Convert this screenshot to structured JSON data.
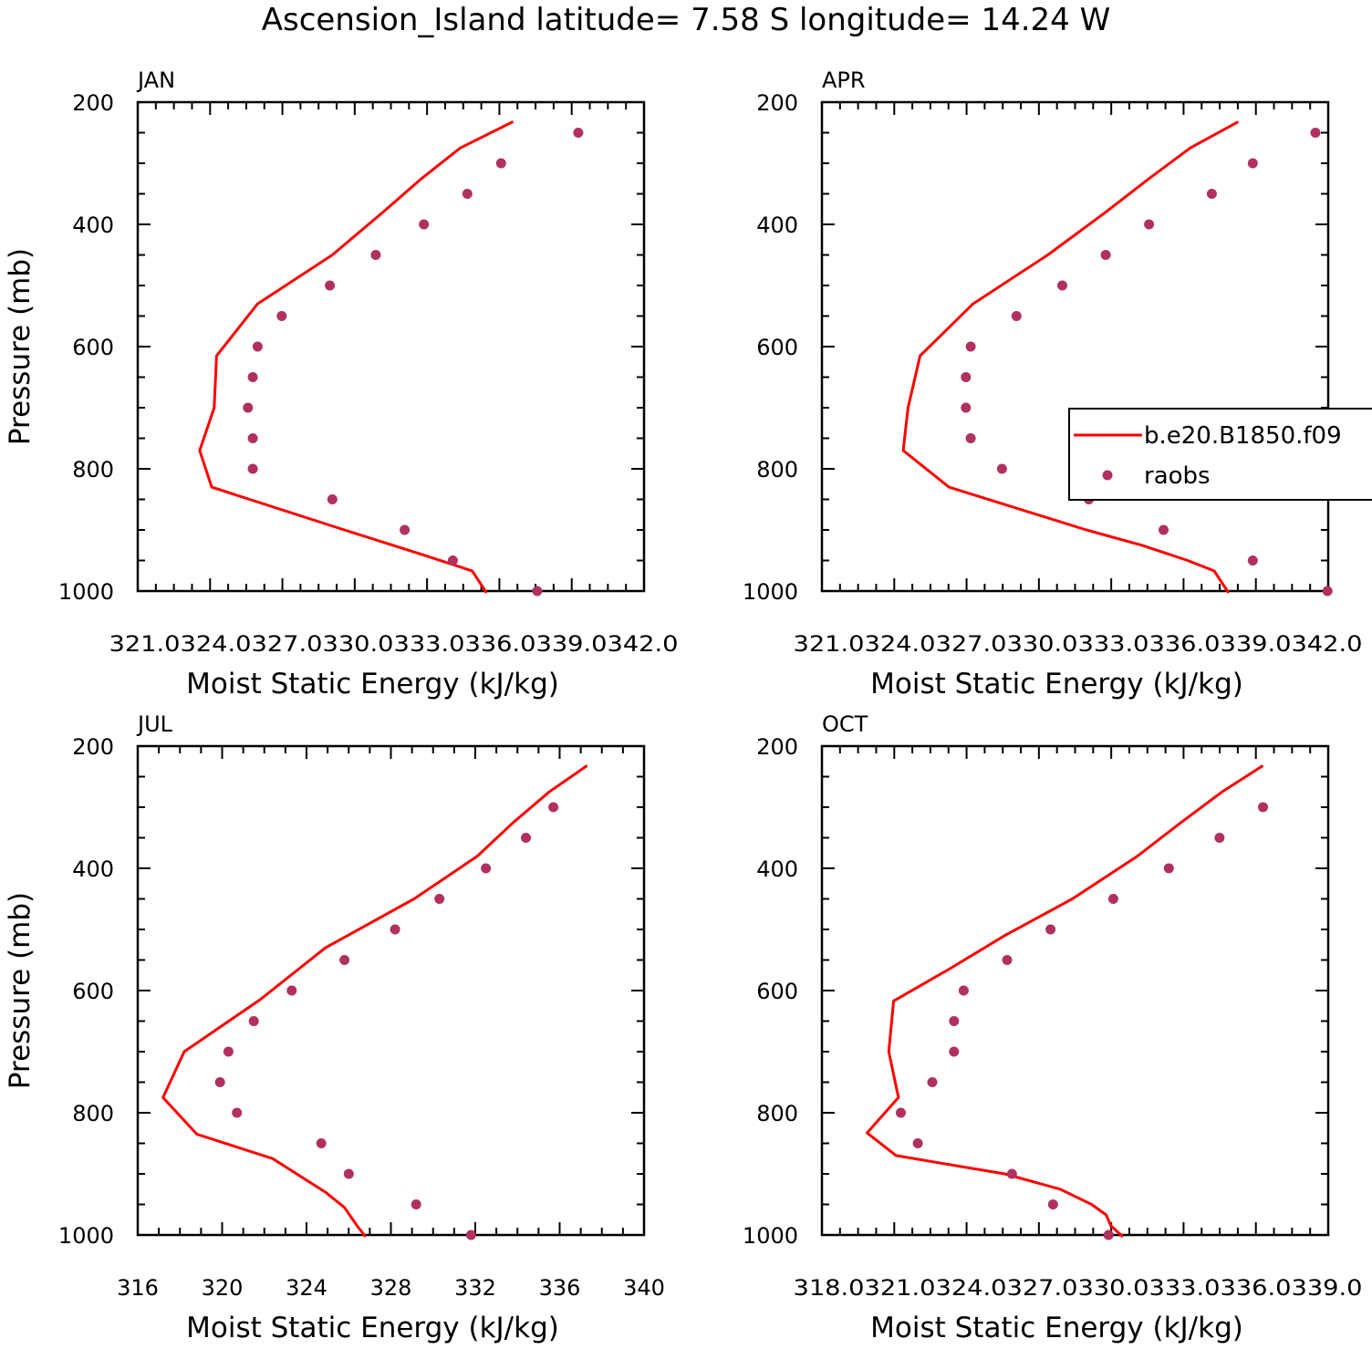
{
  "title": "Ascension_Island  latitude= 7.58 S longitude= 14.24 W",
  "legend": {
    "entries": [
      {
        "label": "b.e20.B1850.f09",
        "kind": "line",
        "color": "#ff0000"
      },
      {
        "label": "raobs",
        "kind": "marker",
        "color": "#b03060"
      }
    ]
  },
  "chart_data": [
    {
      "type": "line",
      "panel_title": "JAN",
      "xlabel": "Moist Static Energy (kJ/kg)",
      "ylabel": "Pressure (mb)",
      "xlim": [
        321.03,
        342.03
      ],
      "ylim": [
        1000,
        200
      ],
      "x_tick_labels": [
        "321.03",
        "24.03",
        "27.03",
        "30.03",
        "33.03",
        "36.03",
        "39.03",
        "42.0"
      ],
      "y_tick_labels": [
        "200",
        "400",
        "600",
        "800",
        "1000"
      ],
      "series": [
        {
          "name": "b.e20.B1850.f09",
          "points": [
            [
              336.6,
              232
            ],
            [
              334.4,
              275
            ],
            [
              332.8,
              325
            ],
            [
              331.2,
              380
            ],
            [
              329.1,
              450
            ],
            [
              326.0,
              530
            ],
            [
              324.3,
              615
            ],
            [
              324.2,
              700
            ],
            [
              323.6,
              770
            ],
            [
              324.1,
              830
            ],
            [
              329.6,
              900
            ],
            [
              332.8,
              940
            ],
            [
              334.9,
              967
            ],
            [
              335.5,
              1003
            ]
          ]
        },
        {
          "name": "raobs",
          "points": [
            [
              339.3,
              250
            ],
            [
              336.1,
              300
            ],
            [
              334.7,
              350
            ],
            [
              332.9,
              400
            ],
            [
              330.9,
              450
            ],
            [
              329.0,
              500
            ],
            [
              327.0,
              550
            ],
            [
              326.0,
              600
            ],
            [
              325.8,
              650
            ],
            [
              325.6,
              700
            ],
            [
              325.8,
              750
            ],
            [
              325.8,
              800
            ],
            [
              329.1,
              850
            ],
            [
              332.1,
              900
            ],
            [
              334.1,
              950
            ],
            [
              337.6,
              1000
            ]
          ]
        }
      ]
    },
    {
      "type": "line",
      "panel_title": "APR",
      "xlabel": "Moist Static Energy (kJ/kg)",
      "ylabel": "",
      "xlim": [
        321.03,
        342.03
      ],
      "ylim": [
        1000,
        200
      ],
      "x_tick_labels": [
        "321.03",
        "24.03",
        "27.03",
        "30.03",
        "33.03",
        "36.03",
        "39.03",
        "42.0"
      ],
      "y_tick_labels": [
        "200",
        "400",
        "600",
        "800",
        "1000"
      ],
      "series": [
        {
          "name": "b.e20.B1850.f09",
          "points": [
            [
              338.3,
              232
            ],
            [
              336.3,
              275
            ],
            [
              334.6,
              325
            ],
            [
              332.8,
              380
            ],
            [
              330.4,
              450
            ],
            [
              327.3,
              530
            ],
            [
              325.1,
              615
            ],
            [
              324.6,
              700
            ],
            [
              324.4,
              770
            ],
            [
              326.3,
              830
            ],
            [
              332.0,
              900
            ],
            [
              334.3,
              925
            ],
            [
              336.2,
              950
            ],
            [
              337.3,
              967
            ],
            [
              337.6,
              985
            ],
            [
              337.9,
              1003
            ]
          ]
        },
        {
          "name": "raobs",
          "points": [
            [
              341.5,
              250
            ],
            [
              338.9,
              300
            ],
            [
              337.2,
              350
            ],
            [
              334.6,
              400
            ],
            [
              332.8,
              450
            ],
            [
              331.0,
              500
            ],
            [
              329.1,
              550
            ],
            [
              327.2,
              600
            ],
            [
              327.0,
              650
            ],
            [
              327.0,
              700
            ],
            [
              327.2,
              750
            ],
            [
              328.5,
              800
            ],
            [
              332.1,
              850
            ],
            [
              335.2,
              900
            ],
            [
              338.9,
              950
            ],
            [
              342.0,
              1000
            ]
          ]
        }
      ]
    },
    {
      "type": "line",
      "panel_title": "JUL",
      "xlabel": "Moist Static Energy (kJ/kg)",
      "ylabel": "Pressure (mb)",
      "xlim": [
        316,
        340
      ],
      "ylim": [
        1000,
        200
      ],
      "x_tick_labels": [
        "316",
        "320",
        "324",
        "328",
        "332",
        "336",
        "340"
      ],
      "y_tick_labels": [
        "200",
        "400",
        "600",
        "800",
        "1000"
      ],
      "series": [
        {
          "name": "b.e20.B1850.f09",
          "points": [
            [
              337.3,
              232
            ],
            [
              335.5,
              275
            ],
            [
              333.8,
              325
            ],
            [
              332.1,
              380
            ],
            [
              329.1,
              450
            ],
            [
              324.9,
              530
            ],
            [
              321.8,
              615
            ],
            [
              318.2,
              700
            ],
            [
              317.2,
              775
            ],
            [
              318.8,
              835
            ],
            [
              322.4,
              875
            ],
            [
              324.9,
              930
            ],
            [
              325.8,
              955
            ],
            [
              326.4,
              985
            ],
            [
              326.8,
              1003
            ]
          ]
        },
        {
          "name": "raobs",
          "points": [
            [
              335.7,
              300
            ],
            [
              334.4,
              350
            ],
            [
              332.5,
              400
            ],
            [
              330.3,
              450
            ],
            [
              328.2,
              500
            ],
            [
              325.8,
              550
            ],
            [
              323.3,
              600
            ],
            [
              321.5,
              650
            ],
            [
              320.3,
              700
            ],
            [
              319.9,
              750
            ],
            [
              320.7,
              800
            ],
            [
              324.7,
              850
            ],
            [
              326.0,
              900
            ],
            [
              329.2,
              950
            ],
            [
              331.8,
              1000
            ]
          ]
        }
      ]
    },
    {
      "type": "line",
      "panel_title": "OCT",
      "xlabel": "Moist Static Energy (kJ/kg)",
      "ylabel": "",
      "xlim": [
        318.03,
        339.0
      ],
      "ylim": [
        1000,
        200
      ],
      "x_tick_labels": [
        "318.03",
        "21.03",
        "24.03",
        "27.03",
        "30.03",
        "33.03",
        "36.03",
        "39.0"
      ],
      "y_tick_labels": [
        "200",
        "400",
        "600",
        "800",
        "1000"
      ],
      "series": [
        {
          "name": "b.e20.B1850.f09",
          "points": [
            [
              336.3,
              232
            ],
            [
              334.6,
              275
            ],
            [
              332.9,
              325
            ],
            [
              331.1,
              380
            ],
            [
              328.4,
              450
            ],
            [
              325.6,
              510
            ],
            [
              323.3,
              565
            ],
            [
              321.0,
              617
            ],
            [
              320.8,
              700
            ],
            [
              321.2,
              775
            ],
            [
              319.9,
              833
            ],
            [
              321.1,
              870
            ],
            [
              325.6,
              900
            ],
            [
              327.9,
              925
            ],
            [
              329.2,
              950
            ],
            [
              329.8,
              967
            ],
            [
              330.0,
              985
            ],
            [
              330.5,
              1003
            ]
          ]
        },
        {
          "name": "raobs",
          "points": [
            [
              336.3,
              300
            ],
            [
              334.5,
              350
            ],
            [
              332.4,
              400
            ],
            [
              330.1,
              450
            ],
            [
              327.5,
              500
            ],
            [
              325.7,
              550
            ],
            [
              323.9,
              600
            ],
            [
              323.5,
              650
            ],
            [
              323.5,
              700
            ],
            [
              322.6,
              750
            ],
            [
              321.3,
              800
            ],
            [
              322.0,
              850
            ],
            [
              325.9,
              900
            ],
            [
              327.6,
              950
            ],
            [
              329.9,
              1000
            ]
          ]
        }
      ]
    }
  ]
}
